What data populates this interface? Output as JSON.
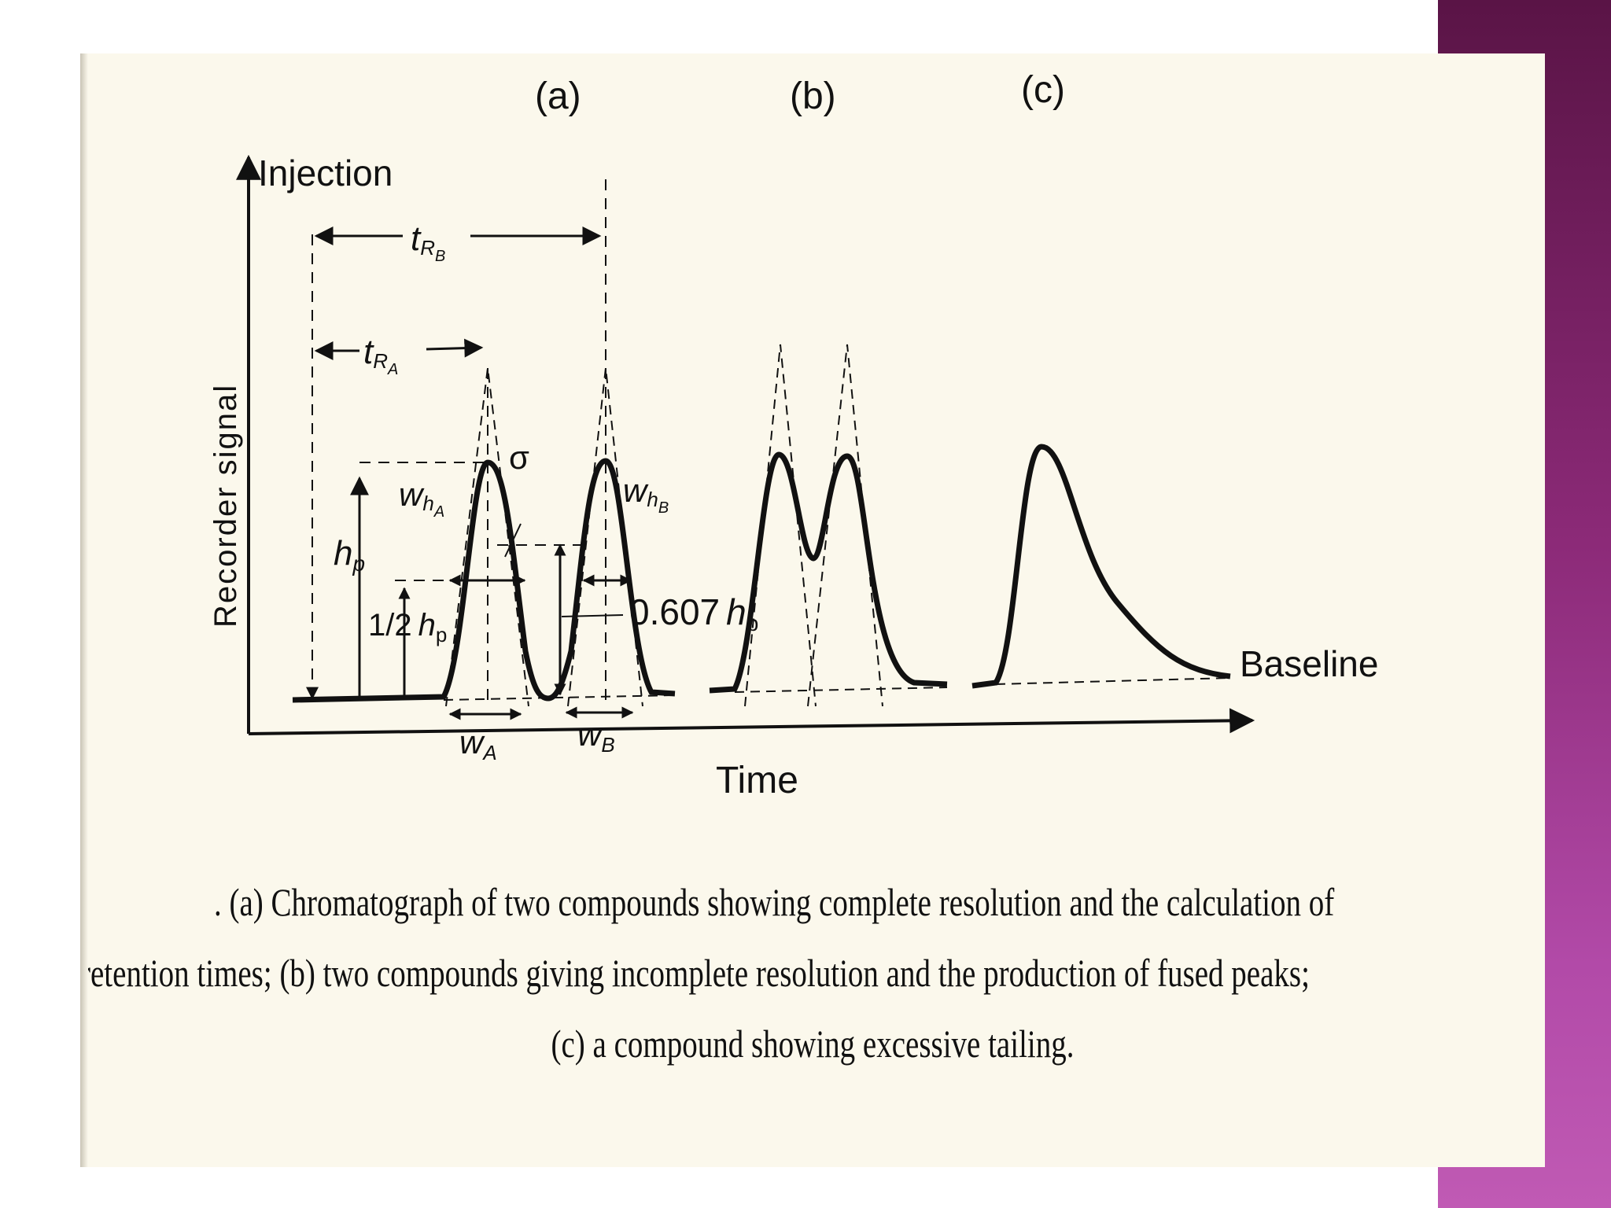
{
  "panels": {
    "a": "(a)",
    "b": "(b)",
    "c": "(c)"
  },
  "axes": {
    "y_label": "Recorder signal",
    "x_label": "Time",
    "injection": "Injection",
    "baseline": "Baseline"
  },
  "annotations": {
    "t": "t",
    "R": "R",
    "A": "A",
    "B": "B",
    "w": "w",
    "h": "h",
    "p": "p",
    "sigma": "σ",
    "half": "1/2",
    "factor": "0.607"
  },
  "caption": {
    "line1": ". (a) Chromatograph of two compounds showing complete resolution and the calculation of",
    "line2": "retention times; (b) two compounds giving incomplete resolution and the production of fused peaks;",
    "line3": "(c) a compound showing excessive tailing."
  },
  "colors": {
    "side_bar": "#8c2a78",
    "paper": "#fbf8ec",
    "ink": "#111111"
  }
}
